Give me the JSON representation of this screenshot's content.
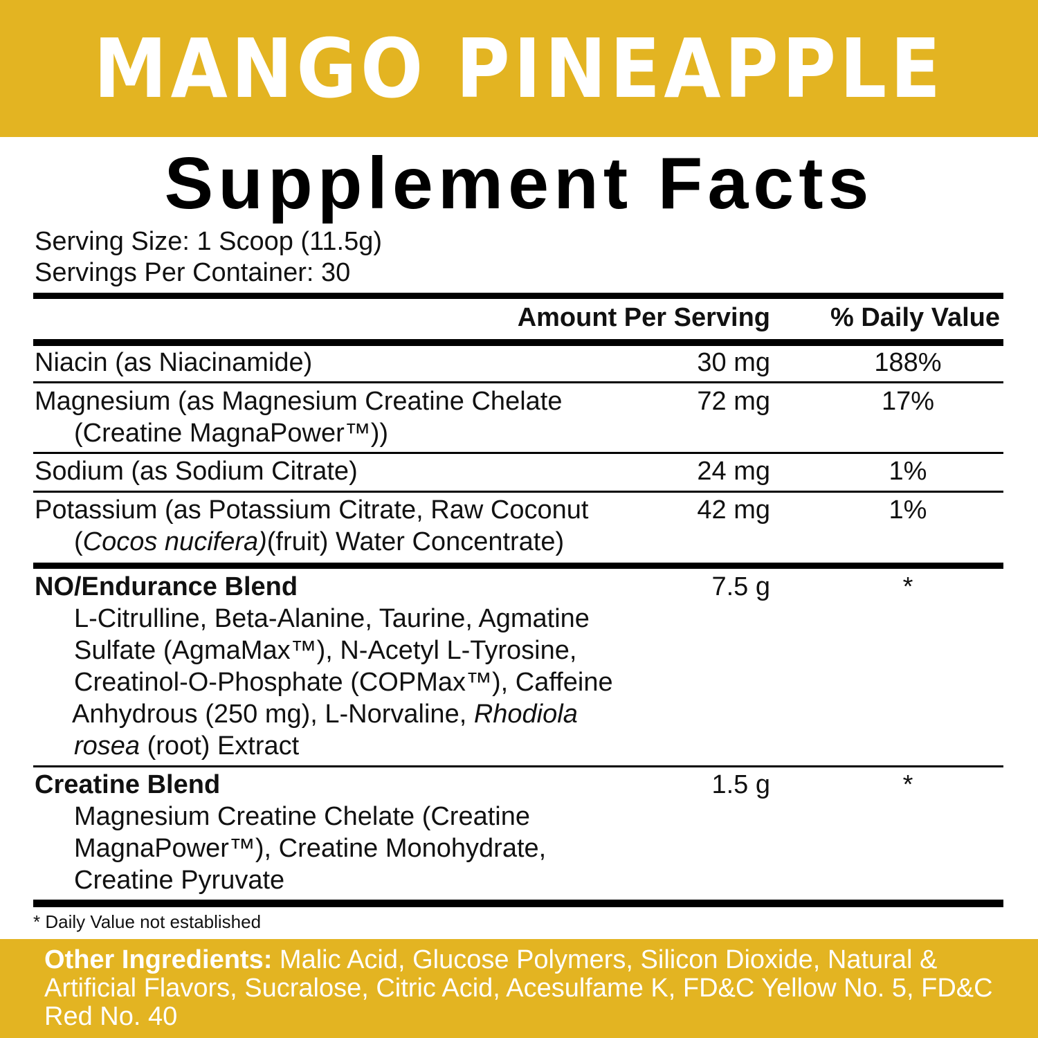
{
  "brand_color": "#E3B422",
  "flavor": "MANGO PINEAPPLE",
  "title": "Supplement Facts",
  "serving_size": "Serving Size: 1 Scoop (11.5g)",
  "servings_per_container": "Servings Per Container: 30",
  "headers": {
    "amount": "Amount Per Serving",
    "dv": "% Daily Value"
  },
  "rows": [
    {
      "name": "Niacin (as Niacinamide)",
      "amount": "30 mg",
      "dv": "188%"
    },
    {
      "name": "Magnesium (as Magnesium Creatine Chelate",
      "name2": "(Creatine MagnaPower™))",
      "amount": "72 mg",
      "dv": "17%"
    },
    {
      "name": "Sodium (as Sodium Citrate)",
      "amount": "24 mg",
      "dv": "1%"
    },
    {
      "name": "Potassium (as Potassium Citrate, Raw Coconut",
      "name2_a": "(",
      "name2_i": "Cocos nucifera)",
      "name2_b": "(fruit) Water Concentrate)",
      "amount": "42 mg",
      "dv": "1%"
    }
  ],
  "blends": [
    {
      "name": "NO/Endurance Blend",
      "amount": "7.5 g",
      "dv": "*",
      "lines": [
        "L-Citrulline, Beta-Alanine, Taurine, Agmatine",
        "Sulfate (AgmaMax™), N-Acetyl L-Tyrosine,",
        "Creatinol-O-Phosphate (COPMax™), Caffeine"
      ],
      "line4_a": "Anhydrous (250 mg), L-Norvaline, ",
      "line4_i": "Rhodiola",
      "line5_i": "rosea",
      "line5_b": " (root) Extract"
    },
    {
      "name": "Creatine Blend",
      "amount": "1.5 g",
      "dv": "*",
      "lines": [
        "Magnesium Creatine Chelate (Creatine",
        "MagnaPower™), Creatine Monohydrate,",
        "Creatine Pyruvate"
      ]
    }
  ],
  "footnote": "* Daily Value not established",
  "other_ingredients": {
    "label": "Other Ingredients:",
    "text": " Malic Acid, Glucose Polymers, Silicon Dioxide, Natural & Artificial Flavors, Sucralose, Citric Acid, Acesulfame K, FD&C Yellow No. 5, FD&C Red No. 40"
  }
}
